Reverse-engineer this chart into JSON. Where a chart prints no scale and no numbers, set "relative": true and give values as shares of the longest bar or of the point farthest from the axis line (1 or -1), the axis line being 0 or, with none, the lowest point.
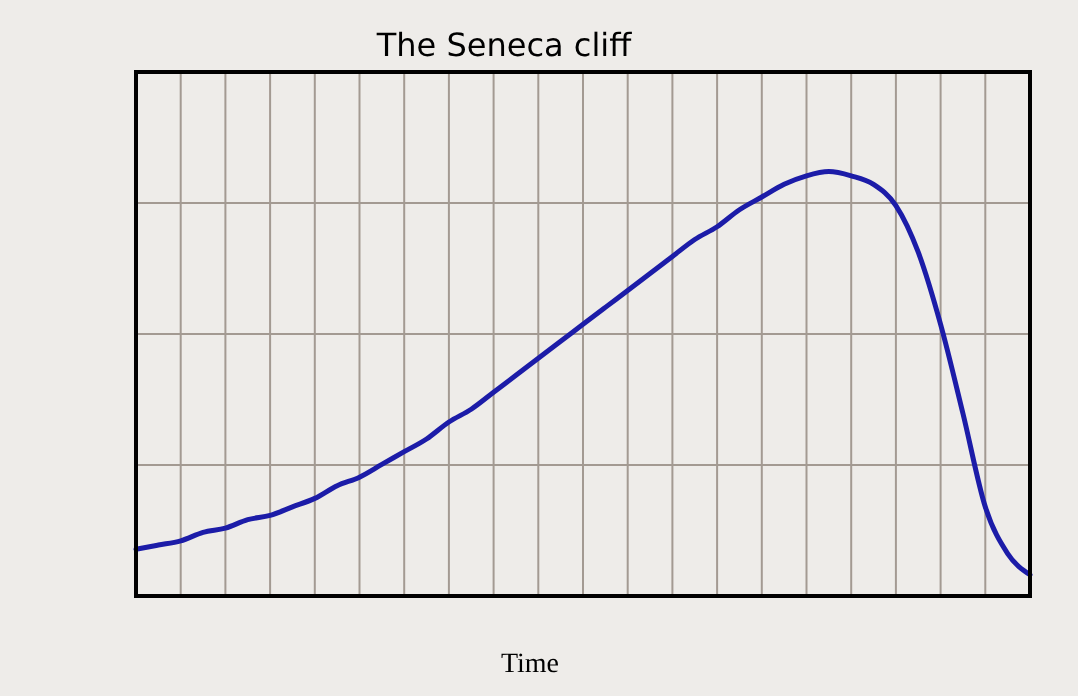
{
  "chart_data": {
    "type": "line",
    "title": "The Seneca cliff",
    "xlabel": "Time",
    "relative": true,
    "grid": true,
    "categories": [
      null,
      null,
      null,
      null,
      null,
      null,
      null,
      null,
      null,
      null,
      null,
      null,
      null,
      null,
      null,
      null,
      null,
      null,
      null,
      null,
      null,
      null,
      null,
      null,
      null,
      null,
      null,
      null,
      null,
      null,
      null,
      null,
      null,
      null,
      null,
      null,
      null,
      null,
      null,
      null,
      null
    ],
    "series": [
      {
        "color": "#1c1ca8",
        "values": [
          0.11,
          0.12,
          0.13,
          0.15,
          0.16,
          0.18,
          0.19,
          0.21,
          0.23,
          0.26,
          0.28,
          0.31,
          0.34,
          0.37,
          0.41,
          0.44,
          0.48,
          0.52,
          0.56,
          0.6,
          0.64,
          0.68,
          0.72,
          0.76,
          0.8,
          0.84,
          0.87,
          0.91,
          0.94,
          0.97,
          0.99,
          1,
          0.99,
          0.97,
          0.92,
          0.81,
          0.64,
          0.43,
          0.21,
          0.1,
          0.05
        ]
      }
    ]
  }
}
